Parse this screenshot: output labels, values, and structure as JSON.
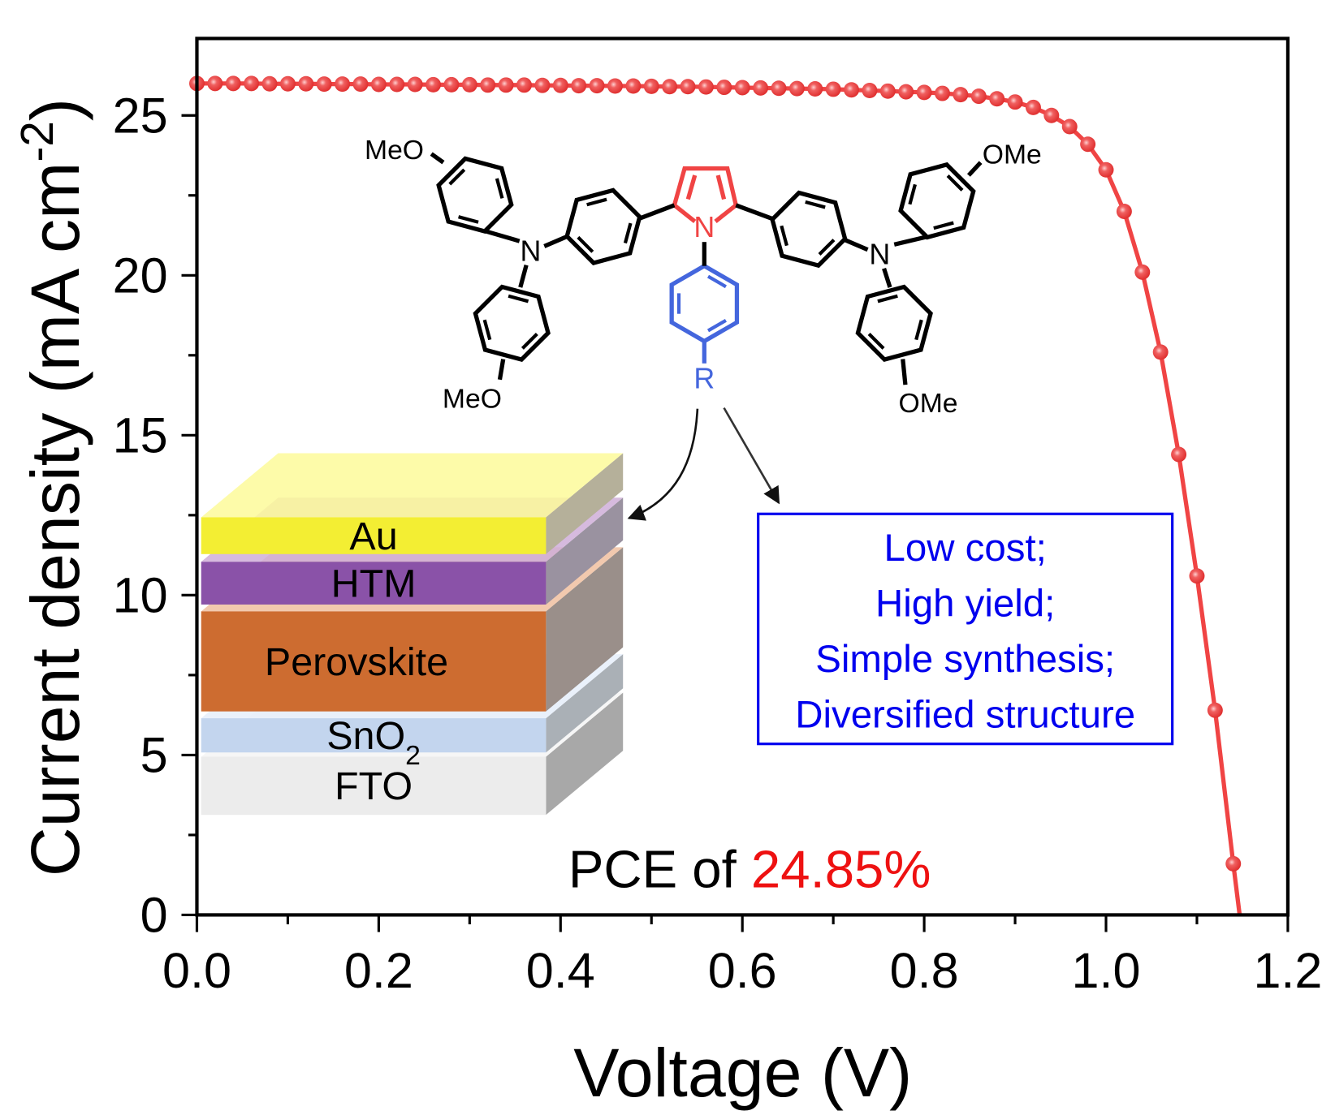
{
  "chart_data": {
    "type": "line",
    "xlabel": "Voltage (V)",
    "ylabel": "Current density (mA cm",
    "ylabel_sup": "-2",
    "ylabel_close": ")",
    "xlim": [
      0,
      1.2
    ],
    "ylim": [
      0,
      27.4
    ],
    "x_ticks": [
      "0.0",
      "0.2",
      "0.4",
      "0.6",
      "0.8",
      "1.0",
      "1.2"
    ],
    "y_ticks": [
      "0",
      "5",
      "10",
      "15",
      "20",
      "25"
    ],
    "grid": false,
    "line_color": "#f04444",
    "voc": 1.147,
    "x": [
      0,
      0.02,
      0.04,
      0.06,
      0.08,
      0.1,
      0.12,
      0.14,
      0.16,
      0.18,
      0.2,
      0.22,
      0.24,
      0.26,
      0.28,
      0.3,
      0.32,
      0.34,
      0.36,
      0.38,
      0.4,
      0.42,
      0.44,
      0.46,
      0.48,
      0.5,
      0.52,
      0.54,
      0.56,
      0.58,
      0.6,
      0.62,
      0.64,
      0.66,
      0.68,
      0.7,
      0.72,
      0.74,
      0.76,
      0.78,
      0.8,
      0.82,
      0.84,
      0.86,
      0.88,
      0.9,
      0.92,
      0.94,
      0.96,
      0.98,
      1.0,
      1.02,
      1.04,
      1.06,
      1.08,
      1.1,
      1.12,
      1.14
    ],
    "y": [
      26.0,
      26.0,
      26.0,
      26.0,
      25.99,
      25.99,
      25.99,
      25.98,
      25.98,
      25.98,
      25.97,
      25.97,
      25.97,
      25.96,
      25.96,
      25.96,
      25.95,
      25.95,
      25.95,
      25.94,
      25.94,
      25.93,
      25.93,
      25.92,
      25.92,
      25.91,
      25.9,
      25.9,
      25.89,
      25.88,
      25.87,
      25.86,
      25.85,
      25.84,
      25.83,
      25.82,
      25.8,
      25.78,
      25.76,
      25.74,
      25.72,
      25.69,
      25.65,
      25.6,
      25.52,
      25.42,
      25.25,
      25.0,
      24.65,
      24.1,
      23.3,
      22.0,
      20.1,
      17.6,
      14.4,
      10.6,
      6.4,
      1.6
    ],
    "annotations": {
      "pce_prefix": "PCE of ",
      "pce_value": "24.85%",
      "pce_color": "#ee1111"
    }
  },
  "molecule": {
    "labels": {
      "meo_top_left": "MeO",
      "meo_bottom_left": "MeO",
      "ome_top_right": "OMe",
      "ome_bottom_right": "OMe",
      "n_left": "N",
      "n_right": "N",
      "n_pyrrole": "N",
      "r_group": "R"
    },
    "pyrrole_color": "#f04444",
    "phenyl_color": "#4466dd"
  },
  "device_stack": {
    "layers": [
      {
        "label": "Au",
        "color": "#f3ee33"
      },
      {
        "label": "HTM",
        "color": "#8a52a8"
      },
      {
        "label": "Perovskite",
        "color": "#cd6c30"
      },
      {
        "label": "SnO",
        "sub": "2",
        "color": "#c3d5ee"
      },
      {
        "label": "FTO",
        "color": "#ececec"
      }
    ]
  },
  "features_box": {
    "lines": [
      "Low cost;",
      "High yield;",
      "Simple synthesis;",
      "Diversified structure"
    ],
    "color": "#0000ee"
  }
}
